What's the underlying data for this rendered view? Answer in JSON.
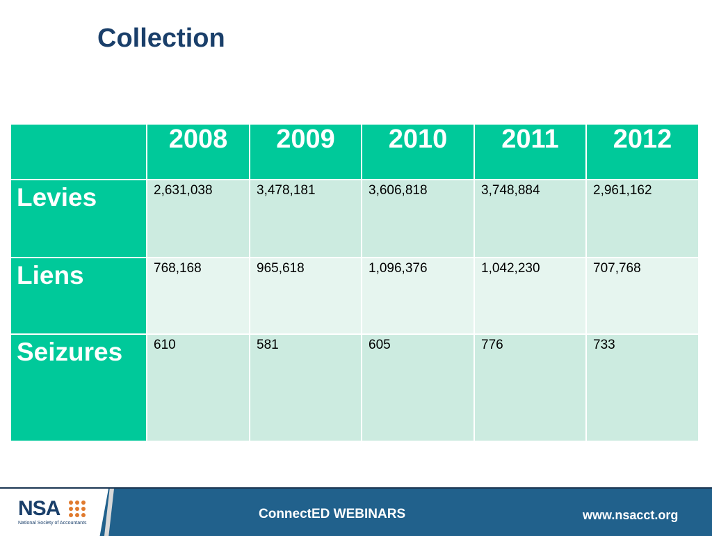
{
  "slide": {
    "title": "Collection"
  },
  "table": {
    "years": [
      "2008",
      "2009",
      "2010",
      "2011",
      "2012"
    ],
    "rows": [
      {
        "label": "Levies",
        "values": [
          "2,631,038",
          "3,478,181",
          "3,606,818",
          "3,748,884",
          "2,961,162"
        ]
      },
      {
        "label": "Liens",
        "values": [
          "768,168",
          "965,618",
          "1,096,376",
          "1,042,230",
          "707,768"
        ]
      },
      {
        "label": "Seizures",
        "values": [
          "610",
          "581",
          "605",
          "776",
          "733"
        ]
      }
    ]
  },
  "footer": {
    "logo_text": "NSA",
    "logo_subtitle": "National Society of Accountants",
    "webinars": "ConnectED WEBINARS",
    "website": "www.nsacct.org"
  },
  "colors": {
    "title": "#1a3f6a",
    "header_fill": "#00c99a",
    "row_dark": "#ccebe0",
    "row_light": "#e6f5ef",
    "footer_bar": "#21618c",
    "logo_dots": "#e07a2e"
  }
}
